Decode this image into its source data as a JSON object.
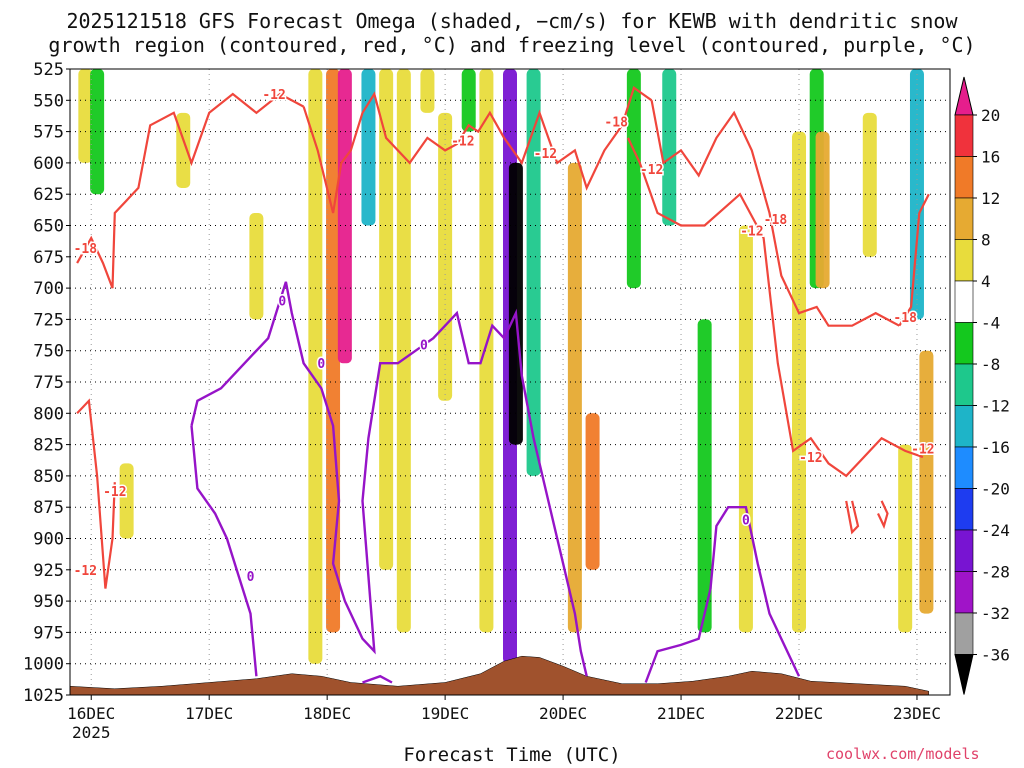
{
  "title": {
    "line1": "2025121518 GFS Forecast Omega (shaded, −cm/s) for KEWB with dendritic snow",
    "line2": "growth region (contoured, red, °C) and freezing level (contoured, purple, °C)"
  },
  "x_axis_title": "Forecast Time (UTC)",
  "credit": "coolwx.com/models",
  "chart_data": {
    "type": "heatmap",
    "xlabel": "Forecast Time (UTC)",
    "ylabel": "Pressure (hPa)",
    "x_ticks": [
      "16DEC",
      "17DEC",
      "18DEC",
      "19DEC",
      "20DEC",
      "21DEC",
      "22DEC",
      "23DEC"
    ],
    "x_year_label": "2025",
    "y_ticks": [
      525,
      550,
      575,
      600,
      625,
      650,
      675,
      700,
      725,
      750,
      775,
      800,
      825,
      850,
      875,
      900,
      925,
      950,
      975,
      1000,
      1025
    ],
    "ylim": [
      1025,
      525
    ],
    "colorbar": {
      "label_values": [
        20,
        16,
        12,
        8,
        4,
        -4,
        -8,
        -12,
        -16,
        -20,
        -24,
        -28,
        -32,
        -36
      ],
      "bands": [
        {
          "from": 16,
          "to": 20,
          "color": "#f0323c"
        },
        {
          "from": 12,
          "to": 16,
          "color": "#f07a28"
        },
        {
          "from": 8,
          "to": 12,
          "color": "#e6aa32"
        },
        {
          "from": 4,
          "to": 8,
          "color": "#e8dc3c"
        },
        {
          "from": -4,
          "to": 4,
          "color": "#ffffff"
        },
        {
          "from": -8,
          "to": -4,
          "color": "#14c81e"
        },
        {
          "from": -12,
          "to": -8,
          "color": "#1ec88c"
        },
        {
          "from": -16,
          "to": -12,
          "color": "#1eb4c8"
        },
        {
          "from": -20,
          "to": -16,
          "color": "#1e8cff"
        },
        {
          "from": -24,
          "to": -20,
          "color": "#1e3cf0"
        },
        {
          "from": -28,
          "to": -24,
          "color": "#7814d2"
        },
        {
          "from": -32,
          "to": -28,
          "color": "#a014c8"
        },
        {
          "from": -36,
          "to": -32,
          "color": "#a0a0a0"
        }
      ],
      "top_overflow_color": "#e61e8c",
      "bottom_overflow_color": "#000000"
    },
    "omega_features": [
      {
        "day": 15.95,
        "p_top": 525,
        "p_bottom": 600,
        "value": 4
      },
      {
        "day": 16.05,
        "p_top": 525,
        "p_bottom": 625,
        "value": -6
      },
      {
        "day": 16.3,
        "p_top": 840,
        "p_bottom": 900,
        "value": 4
      },
      {
        "day": 16.78,
        "p_top": 560,
        "p_bottom": 620,
        "value": 4
      },
      {
        "day": 17.4,
        "p_top": 640,
        "p_bottom": 725,
        "value": 4
      },
      {
        "day": 17.9,
        "p_top": 525,
        "p_bottom": 1000,
        "value": 6
      },
      {
        "day": 18.05,
        "p_top": 525,
        "p_bottom": 975,
        "value": 12
      },
      {
        "day": 18.15,
        "p_top": 525,
        "p_bottom": 760,
        "value": 22
      },
      {
        "day": 18.35,
        "p_top": 525,
        "p_bottom": 650,
        "value": -14
      },
      {
        "day": 18.5,
        "p_top": 525,
        "p_bottom": 925,
        "value": 5
      },
      {
        "day": 18.65,
        "p_top": 525,
        "p_bottom": 975,
        "value": 5
      },
      {
        "day": 18.85,
        "p_top": 525,
        "p_bottom": 560,
        "value": 4
      },
      {
        "day": 19.0,
        "p_top": 560,
        "p_bottom": 790,
        "value": 4
      },
      {
        "day": 19.2,
        "p_top": 525,
        "p_bottom": 575,
        "value": -6
      },
      {
        "day": 19.35,
        "p_top": 525,
        "p_bottom": 975,
        "value": 5
      },
      {
        "day": 19.55,
        "p_top": 525,
        "p_bottom": 1000,
        "value": -26
      },
      {
        "day": 19.6,
        "p_top": 600,
        "p_bottom": 825,
        "value": -40
      },
      {
        "day": 19.75,
        "p_top": 525,
        "p_bottom": 850,
        "value": -10
      },
      {
        "day": 20.1,
        "p_top": 600,
        "p_bottom": 975,
        "value": 8
      },
      {
        "day": 20.25,
        "p_top": 800,
        "p_bottom": 925,
        "value": 14
      },
      {
        "day": 20.6,
        "p_top": 525,
        "p_bottom": 700,
        "value": -6
      },
      {
        "day": 20.9,
        "p_top": 525,
        "p_bottom": 650,
        "value": -12
      },
      {
        "day": 21.2,
        "p_top": 725,
        "p_bottom": 975,
        "value": -6
      },
      {
        "day": 21.55,
        "p_top": 650,
        "p_bottom": 975,
        "value": 5
      },
      {
        "day": 22.0,
        "p_top": 575,
        "p_bottom": 975,
        "value": 5
      },
      {
        "day": 22.15,
        "p_top": 525,
        "p_bottom": 700,
        "value": -6
      },
      {
        "day": 22.2,
        "p_top": 575,
        "p_bottom": 700,
        "value": 10
      },
      {
        "day": 22.6,
        "p_top": 560,
        "p_bottom": 675,
        "value": 5
      },
      {
        "day": 22.9,
        "p_top": 825,
        "p_bottom": 975,
        "value": 5
      },
      {
        "day": 23.0,
        "p_top": 525,
        "p_bottom": 725,
        "value": -14
      },
      {
        "day": 23.08,
        "p_top": 750,
        "p_bottom": 960,
        "value": 8
      }
    ],
    "dgz_contours": [
      {
        "level": -12,
        "points": [
          [
            15.88,
            800
          ],
          [
            15.98,
            790
          ],
          [
            16.05,
            850
          ],
          [
            16.12,
            940
          ],
          [
            16.18,
            900
          ],
          [
            16.2,
            855
          ]
        ]
      },
      {
        "level": -18,
        "points": [
          [
            15.88,
            680
          ],
          [
            16.0,
            660
          ],
          [
            16.1,
            680
          ],
          [
            16.18,
            700
          ],
          [
            16.2,
            640
          ],
          [
            16.4,
            620
          ],
          [
            16.5,
            570
          ],
          [
            16.7,
            560
          ],
          [
            16.85,
            600
          ],
          [
            17.0,
            560
          ],
          [
            17.2,
            545
          ],
          [
            17.4,
            560
          ],
          [
            17.6,
            545
          ],
          [
            17.8,
            555
          ]
        ]
      },
      {
        "level": -12,
        "points": [
          [
            17.8,
            555
          ],
          [
            17.92,
            590
          ],
          [
            18.05,
            640
          ],
          [
            18.12,
            600
          ],
          [
            18.2,
            590
          ],
          [
            18.3,
            560
          ],
          [
            18.4,
            545
          ],
          [
            18.5,
            580
          ],
          [
            18.7,
            600
          ],
          [
            18.85,
            580
          ],
          [
            19.0,
            590
          ],
          [
            19.1,
            585
          ],
          [
            19.2,
            570
          ],
          [
            19.28,
            575
          ],
          [
            19.38,
            560
          ],
          [
            19.5,
            580
          ]
        ]
      },
      {
        "level": -12,
        "points": [
          [
            19.5,
            580
          ],
          [
            19.65,
            600
          ],
          [
            19.8,
            560
          ],
          [
            19.95,
            600
          ],
          [
            20.1,
            590
          ],
          [
            20.2,
            620
          ],
          [
            20.35,
            590
          ],
          [
            20.5,
            570
          ],
          [
            20.6,
            540
          ],
          [
            20.75,
            550
          ]
        ]
      },
      {
        "level": -18,
        "points": [
          [
            20.75,
            550
          ],
          [
            20.85,
            600
          ],
          [
            21.0,
            590
          ],
          [
            21.15,
            610
          ],
          [
            21.3,
            580
          ],
          [
            21.45,
            560
          ],
          [
            21.6,
            590
          ],
          [
            21.75,
            640
          ],
          [
            21.85,
            690
          ],
          [
            22.0,
            720
          ],
          [
            22.15,
            715
          ],
          [
            22.25,
            730
          ],
          [
            22.45,
            730
          ],
          [
            22.65,
            720
          ],
          [
            22.85,
            730
          ]
        ]
      },
      {
        "level": -12,
        "points": [
          [
            20.55,
            580
          ],
          [
            20.65,
            600
          ],
          [
            20.8,
            640
          ],
          [
            21.0,
            650
          ],
          [
            21.2,
            650
          ],
          [
            21.5,
            625
          ],
          [
            21.7,
            660
          ],
          [
            21.82,
            760
          ],
          [
            21.95,
            830
          ],
          [
            22.1,
            820
          ],
          [
            22.25,
            840
          ],
          [
            22.4,
            850
          ],
          [
            22.55,
            835
          ],
          [
            22.7,
            820
          ],
          [
            22.9,
            830
          ],
          [
            23.05,
            835
          ]
        ]
      },
      {
        "level": -18,
        "points": [
          [
            22.85,
            730
          ],
          [
            22.95,
            715
          ],
          [
            23.02,
            640
          ],
          [
            23.1,
            625
          ]
        ]
      },
      {
        "level": -12,
        "points": [
          [
            22.4,
            870
          ],
          [
            22.45,
            895
          ],
          [
            22.5,
            890
          ],
          [
            22.45,
            870
          ]
        ]
      },
      {
        "level": -12,
        "points": [
          [
            22.7,
            870
          ],
          [
            22.75,
            880
          ],
          [
            22.72,
            890
          ],
          [
            22.67,
            880
          ]
        ]
      }
    ],
    "freezing_level_contours": [
      {
        "level": 0,
        "points": [
          [
            16.85,
            810
          ],
          [
            16.9,
            790
          ],
          [
            17.1,
            780
          ],
          [
            17.3,
            760
          ],
          [
            17.5,
            740
          ],
          [
            17.65,
            695
          ],
          [
            17.7,
            720
          ],
          [
            17.8,
            760
          ],
          [
            17.95,
            780
          ],
          [
            18.05,
            810
          ],
          [
            18.1,
            870
          ],
          [
            18.05,
            920
          ],
          [
            18.15,
            950
          ],
          [
            18.3,
            980
          ],
          [
            18.4,
            990
          ],
          [
            18.35,
            930
          ],
          [
            18.3,
            870
          ],
          [
            18.35,
            820
          ],
          [
            18.45,
            760
          ],
          [
            18.6,
            760
          ],
          [
            18.75,
            750
          ],
          [
            18.9,
            740
          ],
          [
            19.0,
            730
          ],
          [
            19.1,
            720
          ],
          [
            19.2,
            760
          ],
          [
            19.3,
            760
          ],
          [
            19.4,
            730
          ],
          [
            19.5,
            740
          ],
          [
            19.6,
            720
          ],
          [
            19.65,
            770
          ],
          [
            19.75,
            820
          ],
          [
            19.85,
            860
          ],
          [
            20.0,
            920
          ],
          [
            20.1,
            960
          ],
          [
            20.15,
            990
          ],
          [
            20.2,
            1010
          ]
        ]
      },
      {
        "level": 0,
        "points": [
          [
            16.85,
            810
          ],
          [
            16.9,
            860
          ],
          [
            17.05,
            880
          ],
          [
            17.15,
            900
          ],
          [
            17.25,
            930
          ],
          [
            17.35,
            960
          ],
          [
            17.4,
            1010
          ]
        ]
      },
      {
        "level": 0,
        "points": [
          [
            18.3,
            1015
          ],
          [
            18.45,
            1010
          ],
          [
            18.55,
            1015
          ]
        ]
      },
      {
        "level": 0,
        "points": [
          [
            20.7,
            1015
          ],
          [
            20.8,
            990
          ],
          [
            21.0,
            985
          ],
          [
            21.15,
            980
          ],
          [
            21.25,
            940
          ],
          [
            21.3,
            890
          ],
          [
            21.4,
            875
          ],
          [
            21.55,
            875
          ],
          [
            21.65,
            920
          ],
          [
            21.75,
            960
          ],
          [
            21.85,
            980
          ],
          [
            21.95,
            1000
          ],
          [
            22.0,
            1010
          ]
        ]
      }
    ],
    "contour_labels": [
      {
        "text": "-12",
        "day": 17.55,
        "p": 545,
        "color": "red"
      },
      {
        "text": "-18",
        "day": 15.95,
        "p": 668,
        "color": "red"
      },
      {
        "text": "-12",
        "day": 16.2,
        "p": 862,
        "color": "red"
      },
      {
        "text": "-12",
        "day": 15.95,
        "p": 925,
        "color": "red"
      },
      {
        "text": "-12",
        "day": 19.15,
        "p": 582,
        "color": "red"
      },
      {
        "text": "-12",
        "day": 19.85,
        "p": 592,
        "color": "red"
      },
      {
        "text": "-18",
        "day": 20.45,
        "p": 567,
        "color": "red"
      },
      {
        "text": "-12",
        "day": 20.75,
        "p": 605,
        "color": "red"
      },
      {
        "text": "-18",
        "day": 21.8,
        "p": 645,
        "color": "red"
      },
      {
        "text": "-12",
        "day": 21.6,
        "p": 654,
        "color": "red"
      },
      {
        "text": "-18",
        "day": 22.9,
        "p": 723,
        "color": "red"
      },
      {
        "text": "-12",
        "day": 22.1,
        "p": 835,
        "color": "red"
      },
      {
        "text": "-12",
        "day": 23.05,
        "p": 828,
        "color": "red"
      },
      {
        "text": "0",
        "day": 17.62,
        "p": 710,
        "color": "purple"
      },
      {
        "text": "0",
        "day": 17.95,
        "p": 760,
        "color": "purple"
      },
      {
        "text": "0",
        "day": 17.35,
        "p": 930,
        "color": "purple"
      },
      {
        "text": "0",
        "day": 18.82,
        "p": 745,
        "color": "purple"
      },
      {
        "text": "0",
        "day": 21.55,
        "p": 885,
        "color": "purple"
      }
    ],
    "terrain_surface": [
      [
        15.82,
        1018
      ],
      [
        16.2,
        1020
      ],
      [
        16.6,
        1018
      ],
      [
        17.0,
        1015
      ],
      [
        17.4,
        1012
      ],
      [
        17.7,
        1008
      ],
      [
        17.95,
        1010
      ],
      [
        18.2,
        1015
      ],
      [
        18.6,
        1018
      ],
      [
        19.0,
        1015
      ],
      [
        19.3,
        1008
      ],
      [
        19.5,
        998
      ],
      [
        19.65,
        994
      ],
      [
        19.8,
        995
      ],
      [
        20.0,
        1002
      ],
      [
        20.2,
        1010
      ],
      [
        20.5,
        1016
      ],
      [
        20.8,
        1016
      ],
      [
        21.1,
        1014
      ],
      [
        21.4,
        1010
      ],
      [
        21.6,
        1006
      ],
      [
        21.85,
        1008
      ],
      [
        22.1,
        1014
      ],
      [
        22.5,
        1016
      ],
      [
        22.9,
        1018
      ],
      [
        23.1,
        1022
      ]
    ]
  },
  "colors": {
    "dgz_contour": "#f0463c",
    "freezing_level_contour": "#9614c8",
    "terrain": "#a0522d"
  }
}
